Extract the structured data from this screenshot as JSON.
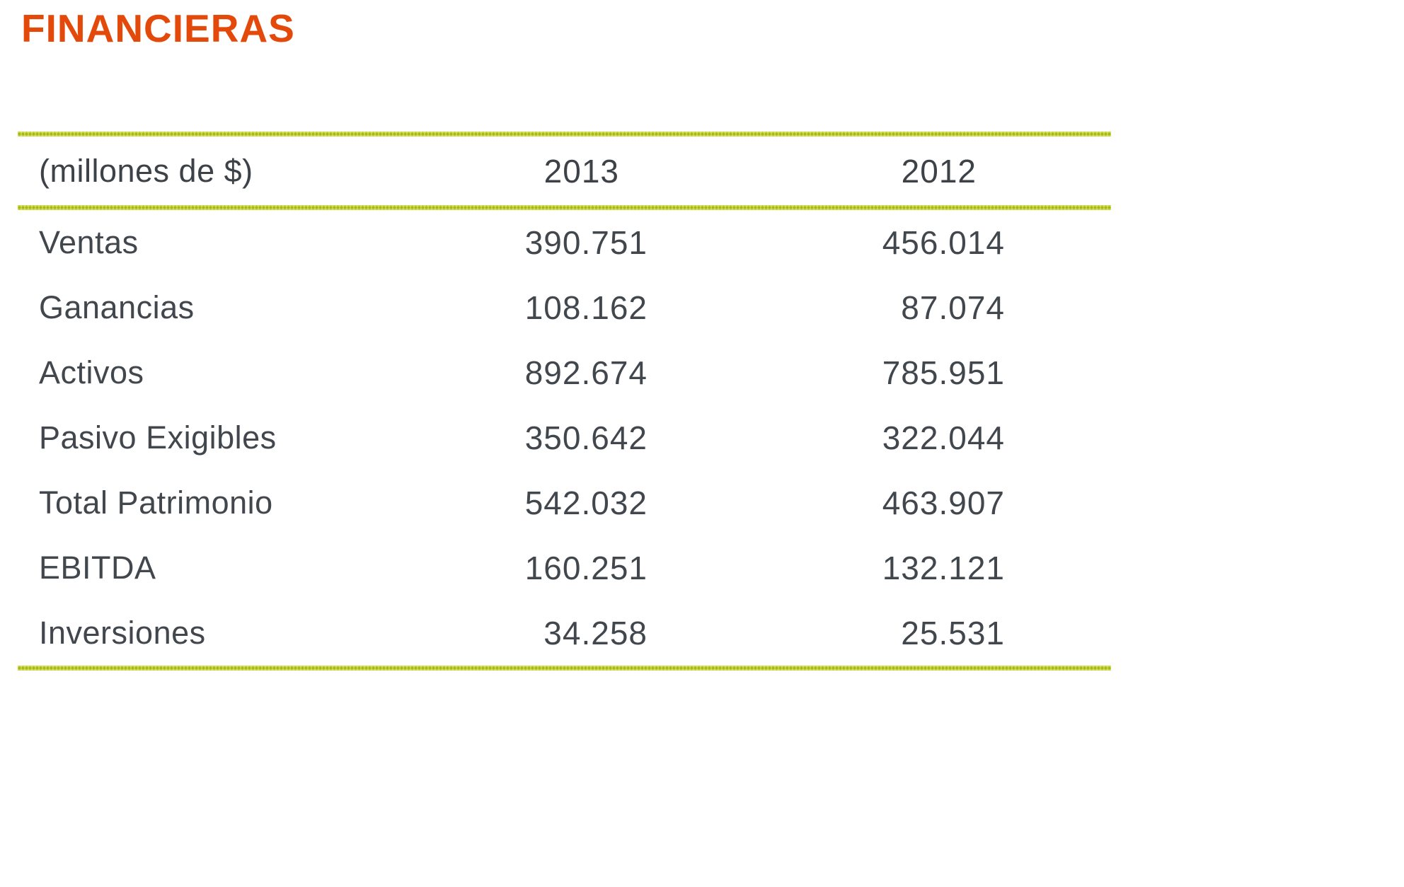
{
  "title": "FINANCIERAS",
  "table": {
    "unit_label": "(millones de $)",
    "columns": [
      "2013",
      "2012"
    ],
    "rows": [
      {
        "label": "Ventas",
        "v2013": "390.751",
        "v2012": "456.014"
      },
      {
        "label": "Ganancias",
        "v2013": "108.162",
        "v2012": "87.074"
      },
      {
        "label": "Activos",
        "v2013": "892.674",
        "v2012": "785.951"
      },
      {
        "label": "Pasivo Exigibles",
        "v2013": "350.642",
        "v2012": "322.044"
      },
      {
        "label": "Total Patrimonio",
        "v2013": "542.032",
        "v2012": "463.907"
      },
      {
        "label": "EBITDA",
        "v2013": "160.251",
        "v2012": "132.121"
      },
      {
        "label": "Inversiones",
        "v2013": "34.258",
        "v2012": "25.531"
      }
    ]
  },
  "colors": {
    "accent_orange": "#e2490b",
    "rule_green": "#a6b90f",
    "text": "#41474c"
  }
}
